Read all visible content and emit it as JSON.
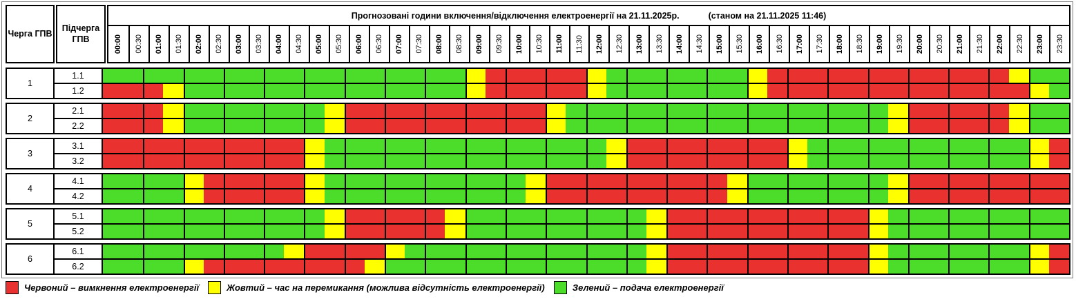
{
  "header": {
    "queue_label": "Черга ГПВ",
    "subqueue_label": "Підчерга ГПВ",
    "title": "Прогнозовані години включення/відключення електроенергії на 21.11.2025р.",
    "status": "(станом на 21.11.2025 11:46)"
  },
  "colors": {
    "R": "#e9312f",
    "Y": "#ffff00",
    "G": "#4cdd2b"
  },
  "chart_data": {
    "type": "heatmap",
    "title": "Прогнозовані години включення/відключення електроенергії на 21.11.2025р.",
    "status": "(станом на 21.11.2025 11:46)",
    "x_labels": [
      "00:00",
      "00:30",
      "01:00",
      "01:30",
      "02:00",
      "02:30",
      "03:00",
      "03:30",
      "04:00",
      "04:30",
      "05:00",
      "05:30",
      "06:00",
      "06:30",
      "07:00",
      "07:30",
      "08:00",
      "08:30",
      "09:00",
      "09:30",
      "10:00",
      "10:30",
      "11:00",
      "11:30",
      "12:00",
      "12:30",
      "13:00",
      "13:30",
      "14:00",
      "14:30",
      "15:00",
      "15:30",
      "16:00",
      "16:30",
      "17:00",
      "17:30",
      "18:00",
      "18:30",
      "19:00",
      "19:30",
      "20:00",
      "20:30",
      "21:00",
      "21:30",
      "22:00",
      "22:30",
      "23:00",
      "23:30"
    ],
    "value_legend": {
      "R": "вимкнення електроенергії",
      "Y": "час на перемикання (можлива відсутність електроенергії)",
      "G": "подача електроенергії"
    },
    "groups": [
      {
        "queue": "1",
        "rows": [
          {
            "label": "1.1",
            "values": "GGGGGGGGGGGGGGGGGGYRRRRRYGGGGGGGYRRRRRRRRRRRRYGG"
          },
          {
            "label": "1.2",
            "values": "RRRYGGGGGGGGGGGGGGYRRRRRYGGGGGGGYRRRRRRRRRRRRRYG"
          }
        ]
      },
      {
        "queue": "2",
        "rows": [
          {
            "label": "2.1",
            "values": "RRRYGGGGGGGYRRRRRRRRRRYGGGGGGGGGGGGGGGGYRRRRRYGG"
          },
          {
            "label": "2.2",
            "values": "RRRYGGGGGGGYRRRRRRRRRRYGGGGGGGGGGGGGGGGYRRRRRYGG"
          }
        ]
      },
      {
        "queue": "3",
        "rows": [
          {
            "label": "3.1",
            "values": "RRRRRRRRRRYGGGGGGGGGGGGGGYRRRRRRRRYGGGGGGGGGGGYR"
          },
          {
            "label": "3.2",
            "values": "RRRRRRRRRRYGGGGGGGGGGGGGGYRRRRRRRRYGGGGGGGGGGGYR"
          }
        ]
      },
      {
        "queue": "4",
        "rows": [
          {
            "label": "4.1",
            "values": "GGGGYRRRRRYGGGGGGGGGGYRRRRRRRRRYGGGGGGGYRRRRRRRR"
          },
          {
            "label": "4.2",
            "values": "GGGGYRRRRRYGGGGGGGGGGYRRRRRRRRRYGGGGGGGYRRRRRRRR"
          }
        ]
      },
      {
        "queue": "5",
        "rows": [
          {
            "label": "5.1",
            "values": "GGGGGGGGGGGYRRRRRYGGGGGGGGGYRRRRRRRRRRYGGGGGGGGG"
          },
          {
            "label": "5.2",
            "values": "GGGGGGGGGGGYRRRRRYGGGGGGGGGYRRRRRRRRRRYGGGGGGGGG"
          }
        ]
      },
      {
        "queue": "6",
        "rows": [
          {
            "label": "6.1",
            "values": "GGGGGGGGGYRRRRYGGGGGGGGGGGGYRRRRRRRRRRYGGGGGGGYR"
          },
          {
            "label": "6.2",
            "values": "GGGGYRRRRRRRRYGGGGGGGGGGGGGYRRRRRRRRRRYGGGGGGGYR"
          }
        ]
      }
    ]
  },
  "legend": {
    "items": [
      {
        "key": "R",
        "name": "red",
        "text": "Червоний – вимкнення електроенергії"
      },
      {
        "key": "Y",
        "name": "yellow",
        "text": "Жовтий – час на перемикання (можлива відсутність електроенергії)"
      },
      {
        "key": "G",
        "name": "green",
        "text": "Зелений – подача електроенергії"
      }
    ]
  }
}
